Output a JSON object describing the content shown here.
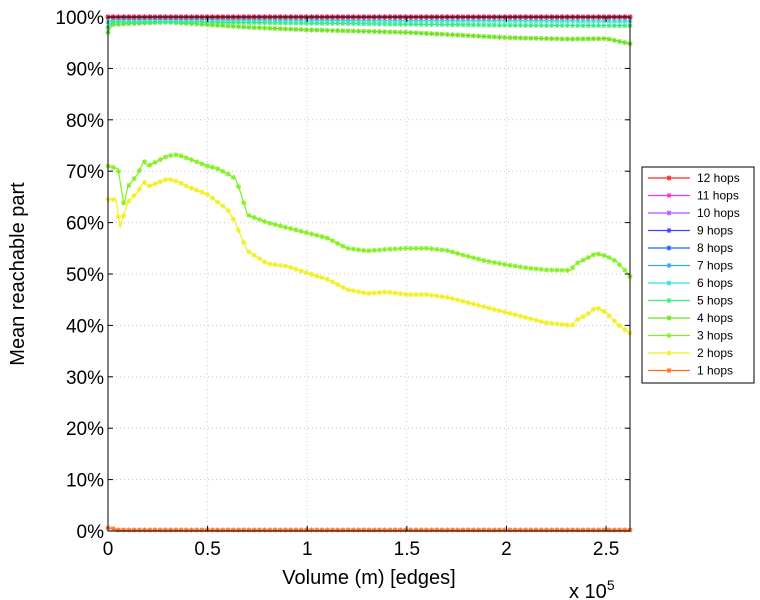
{
  "chart_data": {
    "type": "line",
    "title": "",
    "xlabel": "Volume (m) [edges]",
    "ylabel": "Mean reachable part",
    "x_multiplier_label": "x 10",
    "x_multiplier_exponent": "5",
    "xlim": [
      0,
      2.62
    ],
    "ylim": [
      0,
      100
    ],
    "x_ticks": [
      0,
      0.5,
      1,
      1.5,
      2,
      2.5
    ],
    "x_tick_labels": [
      "0",
      "0.5",
      "1",
      "1.5",
      "2",
      "2.5"
    ],
    "y_ticks": [
      0,
      10,
      20,
      30,
      40,
      50,
      60,
      70,
      80,
      90,
      100
    ],
    "y_tick_labels": [
      "0%",
      "10%",
      "20%",
      "30%",
      "40%",
      "50%",
      "60%",
      "70%",
      "80%",
      "90%",
      "100%"
    ],
    "grid": true,
    "legend_position": "right",
    "marker": "asterisk",
    "series": [
      {
        "name": "12 hops",
        "color": "#ff2020",
        "x": [
          0,
          0.5,
          1,
          1.5,
          2,
          2.62
        ],
        "y": [
          100,
          100,
          100,
          100,
          100,
          100
        ]
      },
      {
        "name": "11 hops",
        "color": "#ff30c8",
        "x": [
          0,
          0.5,
          1,
          1.5,
          2,
          2.62
        ],
        "y": [
          100,
          100,
          100,
          100,
          100,
          100
        ]
      },
      {
        "name": "10 hops",
        "color": "#b050ff",
        "x": [
          0,
          0.5,
          1,
          1.5,
          2,
          2.62
        ],
        "y": [
          100,
          100,
          100,
          100,
          100,
          100
        ]
      },
      {
        "name": "9 hops",
        "color": "#4040ff",
        "x": [
          0,
          0.5,
          1,
          1.5,
          2,
          2.62
        ],
        "y": [
          100,
          100,
          100,
          100,
          100,
          100
        ]
      },
      {
        "name": "8 hops",
        "color": "#2060ff",
        "x": [
          0,
          0.5,
          1,
          1.5,
          2,
          2.62
        ],
        "y": [
          100,
          100,
          100,
          100,
          100,
          100
        ]
      },
      {
        "name": "7 hops",
        "color": "#30a8ff",
        "x": [
          0,
          0.5,
          1,
          1.5,
          2,
          2.62
        ],
        "y": [
          100,
          100,
          100,
          100,
          100,
          100
        ]
      },
      {
        "name": "6 hops",
        "color": "#30e0e0",
        "x": [
          0,
          0.02,
          0.5,
          1,
          1.5,
          2,
          2.62
        ],
        "y": [
          99,
          99.5,
          99.5,
          99.4,
          99.3,
          99.3,
          99.2
        ]
      },
      {
        "name": "5 hops",
        "color": "#40e880",
        "x": [
          0,
          0.02,
          0.1,
          0.5,
          1,
          1.5,
          2,
          2.62
        ],
        "y": [
          98,
          99,
          99,
          99,
          98.8,
          98.6,
          98.4,
          98.3
        ]
      },
      {
        "name": "4 hops",
        "color": "#70e020",
        "x": [
          0,
          0.02,
          0.1,
          0.3,
          0.5,
          0.7,
          1,
          1.5,
          2,
          2.3,
          2.5,
          2.62
        ],
        "y": [
          97,
          98.5,
          98.7,
          99,
          98.5,
          98,
          97.5,
          97,
          96,
          95.7,
          95.8,
          94.8
        ]
      },
      {
        "name": "3 hops",
        "color": "#80f020",
        "x": [
          0,
          0.05,
          0.08,
          0.1,
          0.15,
          0.18,
          0.2,
          0.3,
          0.35,
          0.4,
          0.5,
          0.55,
          0.6,
          0.64,
          0.66,
          0.7,
          0.8,
          0.9,
          1,
          1.1,
          1.2,
          1.3,
          1.4,
          1.5,
          1.6,
          1.7,
          1.8,
          1.9,
          2,
          2.1,
          2.2,
          2.32,
          2.35,
          2.4,
          2.45,
          2.5,
          2.55,
          2.6,
          2.62
        ],
        "y": [
          71,
          70.5,
          63.5,
          67,
          69.5,
          72,
          71,
          73,
          73.2,
          72.5,
          71,
          70.5,
          69.5,
          68.5,
          66.5,
          61.5,
          60,
          59,
          58,
          57,
          55,
          54.5,
          54.8,
          55,
          55,
          54.6,
          53.5,
          52.5,
          51.8,
          51.2,
          50.8,
          50.7,
          52,
          53,
          54,
          53.5,
          52.5,
          50.5,
          49.5
        ]
      },
      {
        "name": "2 hops",
        "color": "#f0f020",
        "x": [
          0,
          0.04,
          0.06,
          0.08,
          0.1,
          0.15,
          0.18,
          0.2,
          0.3,
          0.35,
          0.4,
          0.5,
          0.55,
          0.6,
          0.64,
          0.66,
          0.7,
          0.8,
          0.9,
          1,
          1.1,
          1.2,
          1.3,
          1.4,
          1.5,
          1.6,
          1.7,
          1.8,
          1.9,
          2,
          2.1,
          2.2,
          2.33,
          2.35,
          2.4,
          2.45,
          2.5,
          2.55,
          2.6,
          2.62
        ],
        "y": [
          64.5,
          64.5,
          59,
          61.5,
          64,
          66,
          68,
          67,
          68.5,
          68,
          67,
          65.5,
          64,
          62.5,
          60,
          58,
          54.5,
          52,
          51.5,
          50.2,
          49,
          47,
          46.2,
          46.5,
          46,
          46,
          45.5,
          44.5,
          43.5,
          42.5,
          41.5,
          40.5,
          40,
          41,
          42,
          43.5,
          42.5,
          40.5,
          39,
          38.5
        ]
      },
      {
        "name": "1 hops",
        "color": "#ff7020",
        "x": [
          0,
          0.02,
          0.05,
          0.5,
          1,
          1.5,
          2,
          2.5,
          2.62
        ],
        "y": [
          0.6,
          0.5,
          0.2,
          0.2,
          0.2,
          0.2,
          0.2,
          0.2,
          0.2
        ]
      }
    ]
  }
}
